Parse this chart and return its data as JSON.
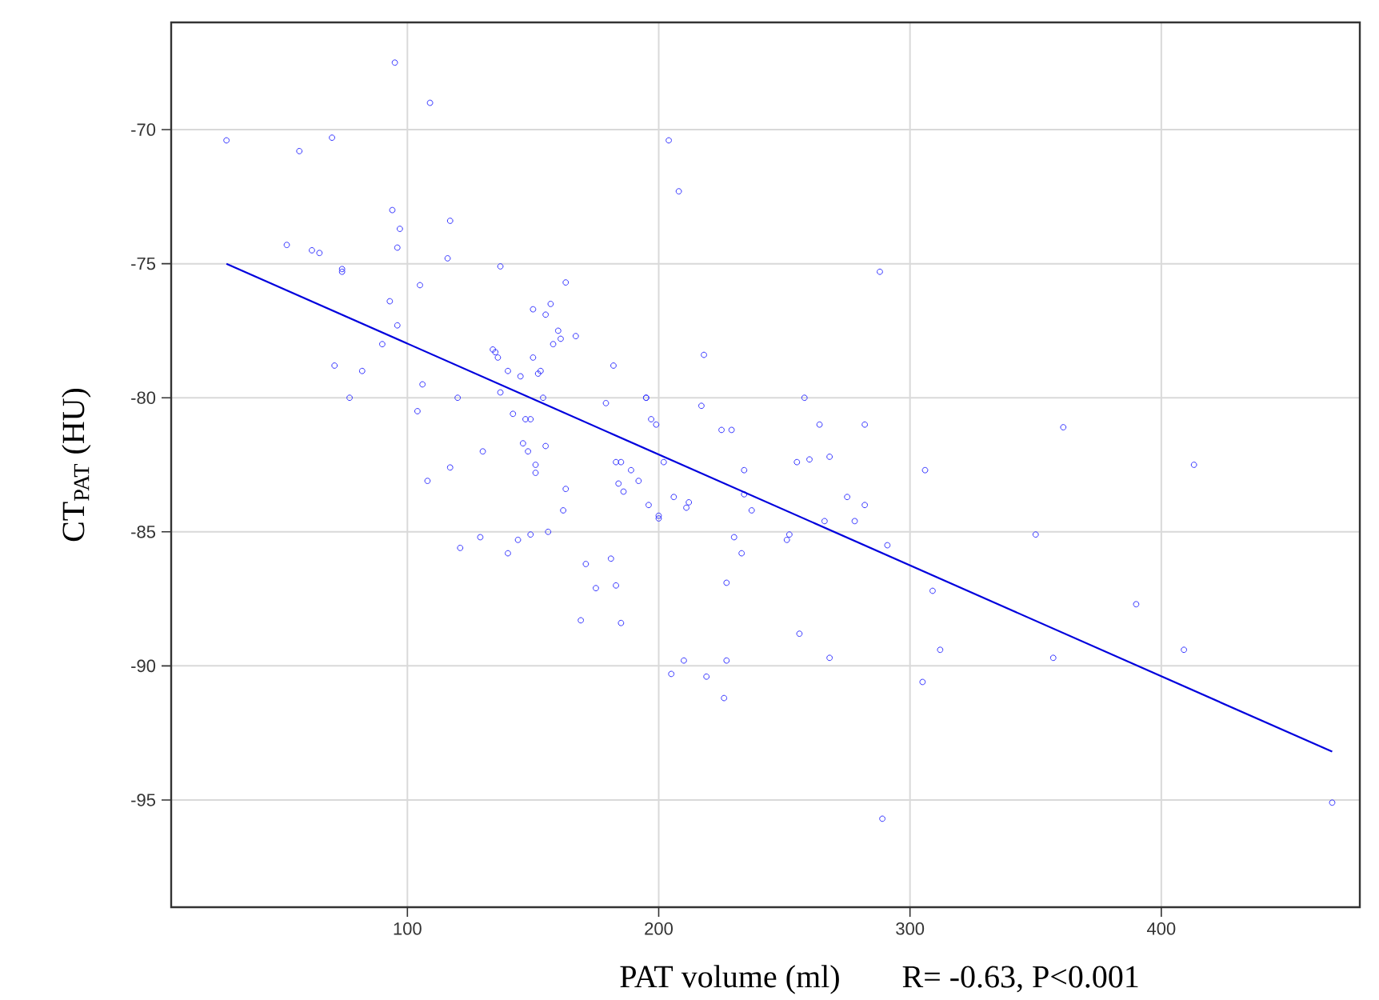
{
  "chart_data": {
    "type": "scatter",
    "xlabel": "PAT volume (ml)",
    "ylabel": "CT$_{PAT}$ (HU)",
    "annotations": [
      "R= -0.63, P<0.001"
    ],
    "xlim": [
      6,
      479
    ],
    "ylim": [
      -99,
      -66
    ],
    "xticks": [
      100,
      200,
      300,
      400
    ],
    "yticks": [
      -95,
      -90,
      -85,
      -80,
      -75,
      -70
    ],
    "grid": true,
    "marker": "circle",
    "series": [
      {
        "color": "#3333ff",
        "x": [
          28,
          52,
          57,
          62,
          65,
          70,
          71,
          74,
          74,
          77,
          82,
          90,
          93,
          94,
          95,
          96,
          96,
          97,
          104,
          105,
          106,
          108,
          109,
          116,
          117,
          117,
          120,
          121,
          129,
          130,
          134,
          135,
          136,
          137,
          137,
          140,
          140,
          142,
          144,
          145,
          146,
          147,
          148,
          149,
          149,
          150,
          150,
          151,
          151,
          152,
          153,
          154,
          155,
          155,
          156,
          157,
          158,
          160,
          161,
          162,
          163,
          163,
          167,
          169,
          171,
          175,
          179,
          181,
          182,
          183,
          183,
          184,
          185,
          185,
          186,
          189,
          192,
          195,
          195,
          196,
          197,
          199,
          200,
          200,
          202,
          204,
          205,
          206,
          208,
          210,
          211,
          212,
          217,
          218,
          219,
          225,
          226,
          227,
          227,
          229,
          230,
          233,
          234,
          234,
          237,
          251,
          252,
          255,
          256,
          258,
          260,
          264,
          266,
          268,
          268,
          275,
          278,
          282,
          282,
          288,
          289,
          291,
          306,
          305,
          309,
          312,
          350,
          357,
          361,
          390,
          409,
          413,
          468
        ],
        "values": [
          -70.4,
          -74.3,
          -70.8,
          -74.5,
          -74.6,
          -70.3,
          -78.8,
          -75.3,
          -75.2,
          -80,
          -79,
          -78,
          -76.4,
          -73,
          -67.5,
          -77.3,
          -74.4,
          -73.7,
          -80.5,
          -75.8,
          -79.5,
          -83.1,
          -69,
          -74.8,
          -73.4,
          -82.6,
          -80,
          -85.6,
          -85.2,
          -82,
          -78.2,
          -78.3,
          -78.5,
          -75.1,
          -79.8,
          -79,
          -85.8,
          -80.6,
          -85.3,
          -79.2,
          -81.7,
          -80.8,
          -82,
          -80.8,
          -85.1,
          -76.7,
          -78.5,
          -82.5,
          -82.8,
          -79.1,
          -79,
          -80,
          -76.9,
          -81.8,
          -85,
          -76.5,
          -78,
          -77.5,
          -77.8,
          -84.2,
          -83.4,
          -75.7,
          -77.7,
          -88.3,
          -86.2,
          -87.1,
          -80.2,
          -86,
          -78.8,
          -82.4,
          -87,
          -83.2,
          -82.4,
          -88.4,
          -83.5,
          -82.7,
          -83.1,
          -80,
          -80,
          -84,
          -80.8,
          -81,
          -84.4,
          -84.5,
          -82.4,
          -70.4,
          -90.3,
          -83.7,
          -72.3,
          -89.8,
          -84.1,
          -83.9,
          -80.3,
          -78.4,
          -90.4,
          -81.2,
          -91.2,
          -86.9,
          -89.8,
          -81.2,
          -85.2,
          -85.8,
          -82.7,
          -83.6,
          -84.2,
          -85.3,
          -85.1,
          -82.4,
          -88.8,
          -80,
          -82.3,
          -81,
          -84.6,
          -89.7,
          -82.2,
          -83.7,
          -84.6,
          -81,
          -84,
          -75.3,
          -95.7,
          -85.5,
          -82.7,
          -90.6,
          -87.2,
          -89.4,
          -85.1,
          -89.7,
          -81.1,
          -87.7,
          -89.4,
          -82.5,
          -95.1
        ]
      },
      {
        "type": "line",
        "color": "#0000dd",
        "marker": "none",
        "x": [
          28,
          468
        ],
        "values": [
          -75,
          -93.2
        ]
      }
    ]
  }
}
